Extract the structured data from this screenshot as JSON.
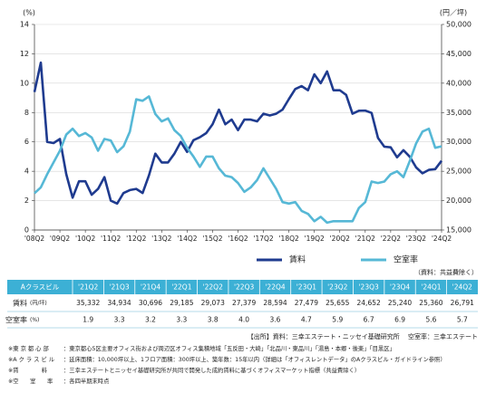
{
  "chart_data": {
    "type": "line",
    "y_label": "(%)",
    "y2_label": "(円／坪)",
    "categories": [
      "'08Q2",
      null,
      null,
      null,
      "'09Q2",
      null,
      null,
      null,
      "'10Q2",
      null,
      null,
      null,
      "'11Q2",
      null,
      null,
      null,
      "'12Q2",
      null,
      null,
      null,
      "'13Q2",
      null,
      null,
      null,
      "'14Q2",
      null,
      null,
      null,
      "'15Q2",
      null,
      null,
      null,
      "'16Q2",
      null,
      null,
      null,
      "'17Q2",
      null,
      null,
      null,
      "'18Q2",
      null,
      null,
      null,
      "'19Q2",
      null,
      null,
      null,
      "'20Q2",
      null,
      null,
      null,
      "'21Q2",
      null,
      null,
      null,
      "'22Q2",
      null,
      null,
      null,
      "'23Q2",
      null,
      null,
      null,
      "'24Q2"
    ],
    "series": [
      {
        "name": "賃料",
        "color": "#1f3b8f",
        "axis": "y2",
        "values": [
          38500,
          43500,
          30000,
          29800,
          30500,
          24500,
          20500,
          23300,
          23300,
          21000,
          22000,
          24000,
          20000,
          19500,
          21300,
          21800,
          22000,
          21300,
          24300,
          28000,
          26500,
          26500,
          28000,
          30000,
          28300,
          30300,
          30800,
          31500,
          33000,
          35500,
          33000,
          33800,
          32000,
          33800,
          33800,
          33500,
          34800,
          34500,
          34800,
          35500,
          37300,
          39000,
          39500,
          38800,
          41500,
          40000,
          42000,
          38800,
          38800,
          38000,
          34800,
          35300,
          35332,
          34934,
          30696,
          29185,
          29073,
          27379,
          28594,
          27479,
          25655,
          24652,
          25240,
          25360,
          26791
        ]
      },
      {
        "name": "空室率",
        "color": "#56b8d6",
        "values": [
          2.5,
          2.9,
          3.8,
          4.6,
          5.4,
          6.5,
          6.9,
          6.4,
          6.6,
          6.3,
          5.4,
          6.2,
          6.1,
          5.3,
          5.7,
          6.7,
          8.9,
          8.8,
          9.1,
          7.9,
          7.4,
          7.6,
          6.8,
          6.4,
          5.6,
          5.0,
          4.3,
          5.0,
          5.0,
          4.2,
          3.7,
          3.6,
          3.2,
          2.6,
          2.9,
          3.4,
          4.2,
          3.5,
          2.8,
          1.9,
          1.8,
          1.9,
          1.3,
          1.1,
          0.6,
          0.9,
          0.5,
          0.6,
          0.6,
          0.6,
          0.6,
          1.5,
          1.9,
          3.3,
          3.2,
          3.3,
          3.8,
          4.0,
          3.6,
          4.7,
          5.9,
          6.7,
          6.9,
          5.6,
          5.7
        ]
      }
    ],
    "ylim": [
      0,
      14
    ],
    "yticks": [
      0,
      2,
      4,
      6,
      8,
      10,
      12,
      14
    ],
    "y2lim": [
      15000,
      50000
    ],
    "y2ticks": [
      {
        "value": 15000,
        "label": "15,000"
      },
      {
        "value": 20000,
        "label": "20,000"
      },
      {
        "value": 25000,
        "label": "25,000"
      },
      {
        "value": 30000,
        "label": "30,000"
      },
      {
        "value": 35000,
        "label": "35,000"
      },
      {
        "value": 40000,
        "label": "40,000"
      },
      {
        "value": 45000,
        "label": "45,000"
      },
      {
        "value": 50000,
        "label": "50,000"
      }
    ],
    "grid": true
  },
  "table": {
    "caption": "（資料：共益費除く）",
    "header": [
      "Aクラスビル",
      "'21Q2",
      "'21Q3",
      "'21Q4",
      "'22Q1",
      "'22Q2",
      "'22Q3",
      "'22Q4",
      "'23Q1",
      "'23Q2",
      "'23Q3",
      "'23Q4",
      "'24Q1",
      "'24Q2"
    ],
    "rows": [
      {
        "label": "賃料",
        "unit": "(円/坪)",
        "cells": [
          "35,332",
          "34,934",
          "30,696",
          "29,185",
          "29,073",
          "27,379",
          "28,594",
          "27,479",
          "25,655",
          "24,652",
          "25,240",
          "25,360",
          "26,791"
        ]
      },
      {
        "label": "空室率",
        "unit": "(%)",
        "cells": [
          "1.9",
          "3.3",
          "3.2",
          "3.3",
          "3.8",
          "4.0",
          "3.6",
          "4.7",
          "5.9",
          "6.7",
          "6.9",
          "5.6",
          "5.7"
        ]
      }
    ]
  },
  "source": "【出所】資料：三幸エステート・ニッセイ基礎研究所　 空室率：三幸エステート",
  "notes": [
    {
      "label": "※東 京 都 心 部",
      "text": "：東京都心5区主要オフィス街および周辺区オフィス集積地域「五反田・大崎」「北品川・東品川」「湯島・本郷・後楽」「目黒区」"
    },
    {
      "label": "※A ク ラ ス ビ ル",
      "text": "：延床面積：10,000坪以上、1フロア面積：300坪以上、築年数：15年以内（詳細は「オフィスレントデータ」のAクラスビル・ガイドライン参照）"
    },
    {
      "label": "※賃　　　　料",
      "text": "：三幸エステートとニッセイ基礎研究所が共同で開発した成約賃料に基づくオフィスマーケット指標（共益費除く）"
    },
    {
      "label": "※空　　室　　率",
      "text": "：各四半期末時点"
    }
  ]
}
